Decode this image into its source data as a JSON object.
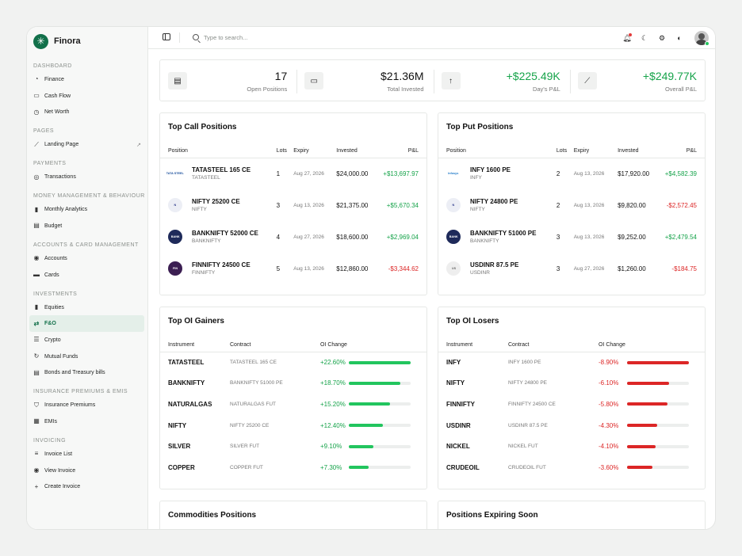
{
  "app": {
    "name": "Finora"
  },
  "sidebar": {
    "sections": [
      {
        "title": "DASHBOARD",
        "items": [
          {
            "label": "Finance",
            "icon": "gauge-icon"
          },
          {
            "label": "Cash Flow",
            "icon": "wallet-icon"
          },
          {
            "label": "Net Worth",
            "icon": "clock-icon"
          }
        ]
      },
      {
        "title": "PAGES",
        "items": [
          {
            "label": "Landing Page",
            "icon": "chart-line-icon",
            "external": true
          }
        ]
      },
      {
        "title": "PAYMENTS",
        "items": [
          {
            "label": "Transactions",
            "icon": "coin-icon"
          }
        ]
      },
      {
        "title": "MONEY MANAGEMENT & BEHAVIOUR",
        "items": [
          {
            "label": "Monthly Analytics",
            "icon": "bars-icon"
          },
          {
            "label": "Budget",
            "icon": "clipboard-icon"
          }
        ]
      },
      {
        "title": "ACCOUNTS & CARD MANAGEMENT",
        "items": [
          {
            "label": "Accounts",
            "icon": "user-icon"
          },
          {
            "label": "Cards",
            "icon": "card-icon"
          }
        ]
      },
      {
        "title": "INVESTMENTS",
        "items": [
          {
            "label": "Equities",
            "icon": "bars-icon"
          },
          {
            "label": "F&O",
            "icon": "swap-icon",
            "active": true
          },
          {
            "label": "Crypto",
            "icon": "coin-stack-icon"
          },
          {
            "label": "Mutual Funds",
            "icon": "refresh-icon"
          },
          {
            "label": "Bonds and Treasury bills",
            "icon": "document-icon"
          }
        ]
      },
      {
        "title": "INSURANCE PREMIUMS & EMIS",
        "items": [
          {
            "label": "Insurance Premiums",
            "icon": "shield-icon"
          },
          {
            "label": "EMIs",
            "icon": "calendar-icon"
          }
        ]
      },
      {
        "title": "INVOICING",
        "items": [
          {
            "label": "Invoice List",
            "icon": "list-icon"
          },
          {
            "label": "View Invoice",
            "icon": "eye-icon"
          },
          {
            "label": "Create Invoice",
            "icon": "plus-icon"
          }
        ]
      }
    ]
  },
  "topbar": {
    "search_placeholder": "Type to search..."
  },
  "stats": [
    {
      "value": "17",
      "label": "Open Positions",
      "icon": "document-icon",
      "positive": false
    },
    {
      "value": "$21.36M",
      "label": "Total Invested",
      "icon": "wallet-icon",
      "positive": false
    },
    {
      "value": "+$225.49K",
      "label": "Day's P&L",
      "icon": "arrow-up-icon",
      "positive": true
    },
    {
      "value": "+$249.77K",
      "label": "Overall P&L",
      "icon": "chart-line-icon",
      "positive": true
    }
  ],
  "call_positions": {
    "title": "Top Call Positions",
    "columns": [
      "Position",
      "Lots",
      "Expiry",
      "Invested",
      "P&L"
    ],
    "rows": [
      {
        "name": "TATASTEEL 165 CE",
        "sub": "TATASTEEL",
        "lots": "1",
        "expiry": "Aug 27, 2026",
        "invested": "$24,000.00",
        "pnl": "+$13,697.97",
        "positive": true,
        "logo": "TATA STEEL",
        "logo_bg": "#ffffff",
        "logo_fg": "#1a4f9c"
      },
      {
        "name": "NIFTY 25200 CE",
        "sub": "NIFTY",
        "lots": "3",
        "expiry": "Aug 13, 2026",
        "invested": "$21,375.00",
        "pnl": "+$5,670.34",
        "positive": true,
        "logo": "N",
        "logo_bg": "#eceef5",
        "logo_fg": "#2d3a8c"
      },
      {
        "name": "BANKNIFTY 52000 CE",
        "sub": "BANKNIFTY",
        "lots": "4",
        "expiry": "Aug 27, 2026",
        "invested": "$18,600.00",
        "pnl": "+$2,969.04",
        "positive": true,
        "logo": "BANK",
        "logo_bg": "#1e2a5a",
        "logo_fg": "#ffffff"
      },
      {
        "name": "FINNIFTY 24500 CE",
        "sub": "FINNIFTY",
        "lots": "5",
        "expiry": "Aug 13, 2026",
        "invested": "$12,860.00",
        "pnl": "-$3,344.62",
        "positive": false,
        "logo": "FIN",
        "logo_bg": "#3b1e52",
        "logo_fg": "#ffffff"
      }
    ]
  },
  "put_positions": {
    "title": "Top Put Positions",
    "columns": [
      "Position",
      "Lots",
      "Expiry",
      "Invested",
      "P&L"
    ],
    "rows": [
      {
        "name": "INFY 1600 PE",
        "sub": "INFY",
        "lots": "2",
        "expiry": "Aug 13, 2026",
        "invested": "$17,920.00",
        "pnl": "+$4,582.39",
        "positive": true,
        "logo": "Infosys",
        "logo_bg": "#ffffff",
        "logo_fg": "#1f7ac9"
      },
      {
        "name": "NIFTY 24800 PE",
        "sub": "NIFTY",
        "lots": "2",
        "expiry": "Aug 13, 2026",
        "invested": "$9,820.00",
        "pnl": "-$2,572.45",
        "positive": false,
        "logo": "N",
        "logo_bg": "#eceef5",
        "logo_fg": "#2d3a8c"
      },
      {
        "name": "BANKNIFTY 51000 PE",
        "sub": "BANKNIFTY",
        "lots": "3",
        "expiry": "Aug 13, 2026",
        "invested": "$9,252.00",
        "pnl": "+$2,479.54",
        "positive": true,
        "logo": "BANK",
        "logo_bg": "#1e2a5a",
        "logo_fg": "#ffffff"
      },
      {
        "name": "USDINR 87.5 PE",
        "sub": "USDINR",
        "lots": "3",
        "expiry": "Aug 27, 2026",
        "invested": "$1,260.00",
        "pnl": "-$184.75",
        "positive": false,
        "logo": "US",
        "logo_bg": "#eeeeee",
        "logo_fg": "#666666"
      }
    ]
  },
  "oi_gainers": {
    "title": "Top OI Gainers",
    "columns": [
      "Instrument",
      "Contract",
      "OI Change"
    ],
    "rows": [
      {
        "instrument": "TATASTEEL",
        "contract": "TATASTEEL 165 CE",
        "change": "+22.60%",
        "pct": 22.6
      },
      {
        "instrument": "BANKNIFTY",
        "contract": "BANKNIFTY 51000 PE",
        "change": "+18.70%",
        "pct": 18.7
      },
      {
        "instrument": "NATURALGAS",
        "contract": "NATURALGAS FUT",
        "change": "+15.20%",
        "pct": 15.2
      },
      {
        "instrument": "NIFTY",
        "contract": "NIFTY 25200 CE",
        "change": "+12.40%",
        "pct": 12.4
      },
      {
        "instrument": "SILVER",
        "contract": "SILVER FUT",
        "change": "+9.10%",
        "pct": 9.1
      },
      {
        "instrument": "COPPER",
        "contract": "COPPER FUT",
        "change": "+7.30%",
        "pct": 7.3
      }
    ]
  },
  "oi_losers": {
    "title": "Top OI Losers",
    "columns": [
      "Instrument",
      "Contract",
      "OI Change"
    ],
    "rows": [
      {
        "instrument": "INFY",
        "contract": "INFY 1600 PE",
        "change": "-8.90%",
        "pct": 8.9
      },
      {
        "instrument": "NIFTY",
        "contract": "NIFTY 24800 PE",
        "change": "-6.10%",
        "pct": 6.1
      },
      {
        "instrument": "FINNIFTY",
        "contract": "FINNIFTY 24500 CE",
        "change": "-5.80%",
        "pct": 5.8
      },
      {
        "instrument": "USDINR",
        "contract": "USDINR 87.5 PE",
        "change": "-4.30%",
        "pct": 4.3
      },
      {
        "instrument": "NICKEL",
        "contract": "NICKEL FUT",
        "change": "-4.10%",
        "pct": 4.1
      },
      {
        "instrument": "CRUDEOIL",
        "contract": "CRUDEOIL FUT",
        "change": "-3.60%",
        "pct": 3.6
      }
    ]
  },
  "bottom": {
    "commodities_title": "Commodities Positions",
    "expiring_title": "Positions Expiring Soon"
  },
  "colors": {
    "accent": "#12704a",
    "positive": "#16a34a",
    "negative": "#dc2626",
    "gain_bar": "#22c55e",
    "loss_bar": "#dc2626"
  }
}
